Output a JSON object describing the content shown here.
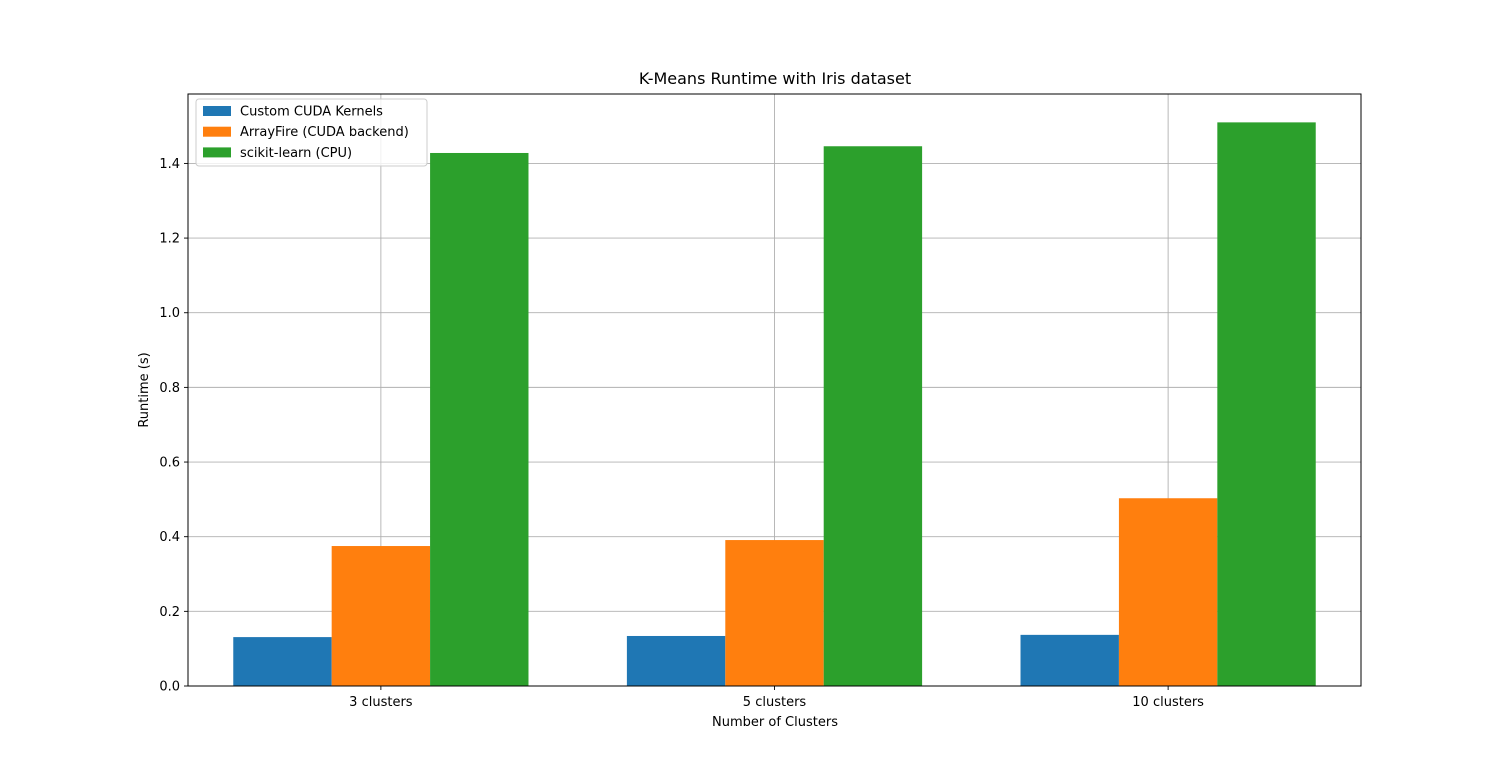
{
  "chart_data": {
    "type": "bar",
    "title": "K-Means Runtime with Iris dataset",
    "xlabel": "Number of Clusters",
    "ylabel": "Runtime (s)",
    "categories": [
      "3 clusters",
      "5 clusters",
      "10 clusters"
    ],
    "series": [
      {
        "name": "Custom CUDA Kernels",
        "color": "#1f77b4",
        "values": [
          0.131,
          0.134,
          0.137
        ]
      },
      {
        "name": "ArrayFire (CUDA backend)",
        "color": "#ff7f0e",
        "values": [
          0.375,
          0.391,
          0.503
        ]
      },
      {
        "name": "scikit-learn (CPU)",
        "color": "#2ca02c",
        "values": [
          1.428,
          1.446,
          1.51
        ]
      }
    ],
    "ylim": [
      0,
      1.586
    ],
    "yticks": [
      "0.0",
      "0.2",
      "0.4",
      "0.6",
      "0.8",
      "1.0",
      "1.2",
      "1.4"
    ],
    "grid": true,
    "legend_position": "upper-left"
  }
}
